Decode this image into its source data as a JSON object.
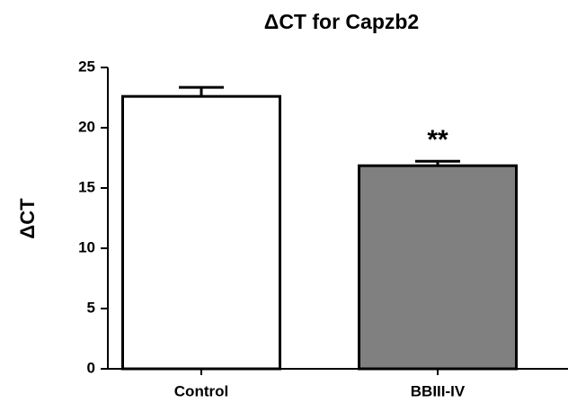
{
  "chart_data": {
    "type": "bar",
    "title": "ΔCT for Capzb2",
    "y_label": "ΔCT",
    "categories": [
      "Control",
      "BBIII-IV"
    ],
    "values": [
      22.6,
      16.85
    ],
    "errors": [
      0.75,
      0.37
    ],
    "colors": [
      "#ffffff",
      "#808080"
    ],
    "annotations": [
      null,
      "**"
    ],
    "ylim": [
      0,
      25
    ],
    "yticks": [
      0,
      5,
      10,
      15,
      20,
      25
    ],
    "grid": false
  }
}
